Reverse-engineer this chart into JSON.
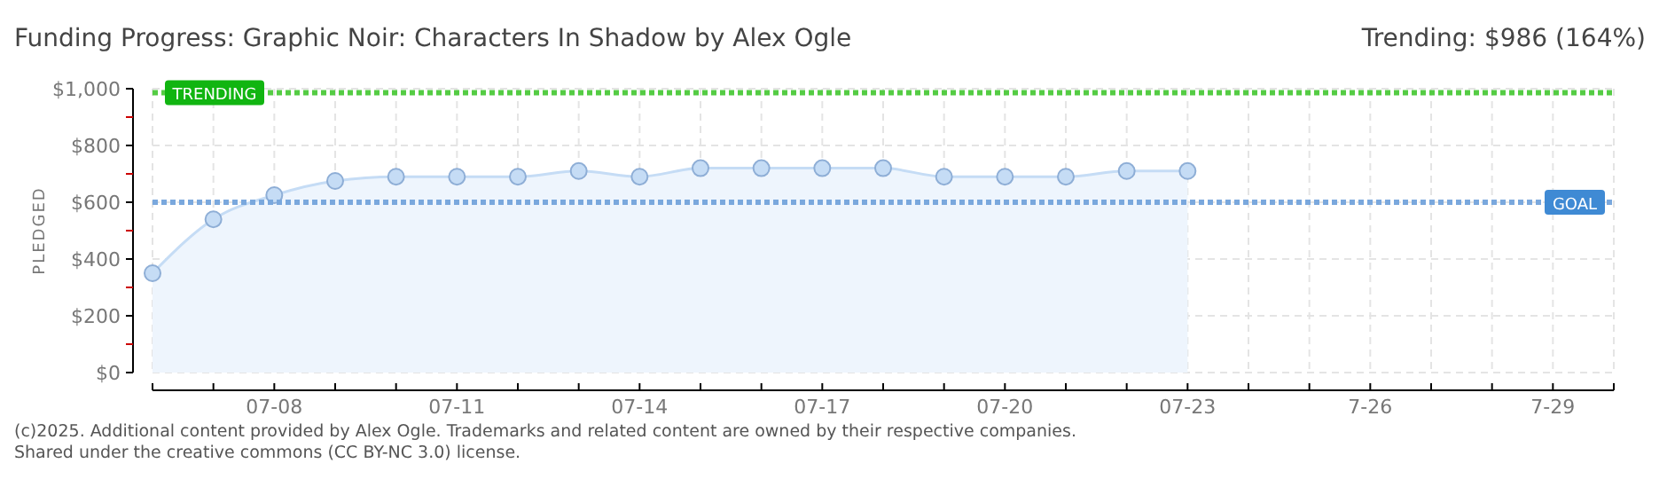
{
  "chart_data": {
    "type": "area",
    "title": "Funding Progress: Graphic Noir: Characters In Shadow by Alex Ogle",
    "subtitle": "Trending: $986 (164%)",
    "ylabel": "PLEDGED",
    "x": [
      "--07-06",
      "--07-07",
      "--07-08",
      "--07-09",
      "--07-10",
      "--07-11",
      "--07-12",
      "--07-13",
      "--07-14",
      "--07-15",
      "--07-16",
      "--07-17",
      "--07-18",
      "--07-19",
      "--07-20",
      "--07-21",
      "--07-22",
      "--07-23"
    ],
    "series": [
      {
        "color": "#c5dcf5",
        "values": [
          350,
          540,
          625,
          675,
          690,
          690,
          690,
          710,
          690,
          720,
          720,
          720,
          720,
          690,
          690,
          690,
          710,
          710
        ]
      }
    ],
    "xlim": [
      "--07-06",
      "--07-30"
    ],
    "xticks": [
      {
        "value": "--07-06",
        "label": null
      },
      {
        "value": "--07-07",
        "label": null
      },
      {
        "value": "--07-08",
        "label": "07-08"
      },
      {
        "value": "--07-09",
        "label": null
      },
      {
        "value": "--07-10",
        "label": null
      },
      {
        "value": "--07-11",
        "label": "07-11"
      },
      {
        "value": "--07-12",
        "label": null
      },
      {
        "value": "--07-13",
        "label": null
      },
      {
        "value": "--07-14",
        "label": "07-14"
      },
      {
        "value": "--07-15",
        "label": null
      },
      {
        "value": "--07-16",
        "label": null
      },
      {
        "value": "--07-17",
        "label": "07-17"
      },
      {
        "value": "--07-18",
        "label": null
      },
      {
        "value": "--07-19",
        "label": null
      },
      {
        "value": "--07-20",
        "label": "07-20"
      },
      {
        "value": "--07-21",
        "label": null
      },
      {
        "value": "--07-22",
        "label": null
      },
      {
        "value": "--07-23",
        "label": "07-23"
      },
      {
        "value": "--07-24",
        "label": null
      },
      {
        "value": "--07-25",
        "label": null
      },
      {
        "value": "--07-26",
        "label": "7-26"
      },
      {
        "value": "--07-27",
        "label": null
      },
      {
        "value": "--07-28",
        "label": null
      },
      {
        "value": "--07-29",
        "label": "7-29"
      },
      {
        "value": "--07-30",
        "label": null
      }
    ],
    "ylim": [
      0,
      1000
    ],
    "yticks": [
      {
        "value": 0,
        "label": "$0"
      },
      {
        "value": 100,
        "label": null
      },
      {
        "value": 200,
        "label": "$200"
      },
      {
        "value": 300,
        "label": null
      },
      {
        "value": 400,
        "label": "$400"
      },
      {
        "value": 500,
        "label": null
      },
      {
        "value": 600,
        "label": "$600"
      },
      {
        "value": 700,
        "label": null
      },
      {
        "value": 800,
        "label": "$800"
      },
      {
        "value": 900,
        "label": null
      },
      {
        "value": 1000,
        "label": "$1,000"
      }
    ],
    "grid": true,
    "marker": "circle",
    "ref_lines": [
      {
        "axis": "y",
        "value": 986,
        "label": "TRENDING",
        "color": "#55cc44",
        "line_style": "dotted"
      },
      {
        "axis": "y",
        "value": 600,
        "label": "GOAL",
        "color": "#7aa8dd",
        "line_style": "dotted"
      }
    ],
    "annotations": [
      "(c)2025. Additional content provided by Alex Ogle. Trademarks and related content are owned by their respective companies.",
      "Shared under the creative commons (CC BY-NC 3.0) license."
    ]
  }
}
